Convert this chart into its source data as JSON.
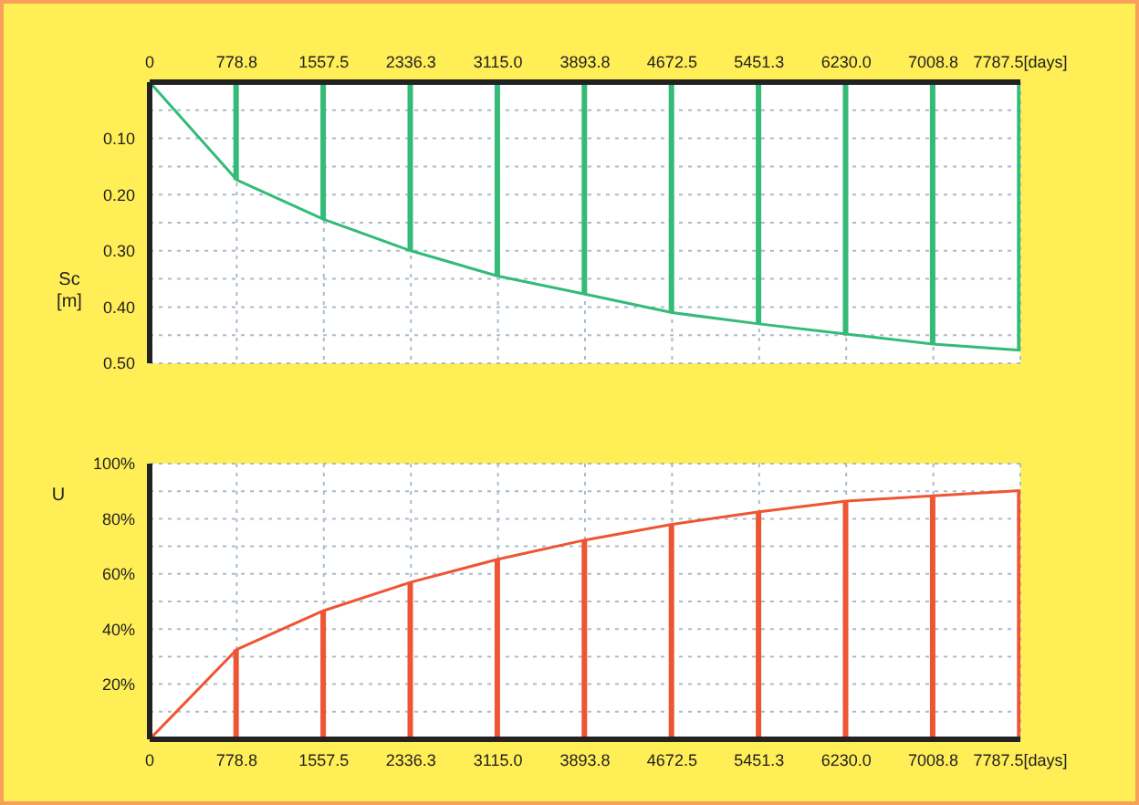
{
  "chart_data": [
    {
      "type": "line",
      "ylabel": "Sc [m]",
      "xlim": [
        0,
        7787.5
      ],
      "xticks": [
        0,
        {
          "value": 778.8,
          "label": "778.8"
        },
        1557.5,
        2336.3,
        {
          "value": 3115.0,
          "label": "3115.0"
        },
        3893.8,
        4672.5,
        5451.3,
        {
          "value": 6230.0,
          "label": "6230.0"
        },
        7008.8,
        {
          "value": 7787.5,
          "label": "7787.5[days]"
        }
      ],
      "ylim": [
        0.5,
        0
      ],
      "yticks": [
        {
          "value": 0.05,
          "label": null
        },
        {
          "value": 0.1,
          "label": "0.10"
        },
        {
          "value": 0.15,
          "label": null
        },
        {
          "value": 0.2,
          "label": "0.20"
        },
        {
          "value": 0.25,
          "label": null
        },
        {
          "value": 0.3,
          "label": "0.30"
        },
        {
          "value": 0.35,
          "label": null
        },
        {
          "value": 0.4,
          "label": "0.40"
        },
        {
          "value": 0.45,
          "label": null
        },
        {
          "value": 0.5,
          "label": "0.50"
        }
      ],
      "grid": true,
      "series": [
        {
          "color": "#33bb77",
          "x": [
            0,
            778.8,
            1557.5,
            2336.3,
            3115.0,
            3893.8,
            4672.5,
            5451.3,
            6230.0,
            7008.8,
            7787.5
          ],
          "values": [
            0,
            0.174,
            0.244,
            0.3,
            0.345,
            0.377,
            0.41,
            0.43,
            0.448,
            0.466,
            0.477
          ]
        },
        {
          "type": "bar",
          "color": "#33bb77",
          "x": [
            778.8,
            1557.5,
            2336.3,
            3115.0,
            3893.8,
            4672.5,
            5451.3,
            6230.0,
            7008.8,
            7787.5
          ],
          "values": [
            0.174,
            0.244,
            0.3,
            0.345,
            0.377,
            0.41,
            0.43,
            0.448,
            0.466,
            0.477
          ]
        }
      ]
    },
    {
      "type": "line",
      "ylabel": "U",
      "xlim": [
        0,
        7787.5
      ],
      "xticks": [
        0,
        {
          "value": 778.8,
          "label": "778.8"
        },
        1557.5,
        2336.3,
        {
          "value": 3115.0,
          "label": "3115.0"
        },
        3893.8,
        4672.5,
        5451.3,
        {
          "value": 6230.0,
          "label": "6230.0"
        },
        7008.8,
        {
          "value": 7787.5,
          "label": "7787.5[days]"
        }
      ],
      "ylim": [
        0,
        100
      ],
      "yticks": [
        {
          "value": 10,
          "label": null
        },
        {
          "value": 20,
          "label": "20%"
        },
        {
          "value": 30,
          "label": null
        },
        {
          "value": 40,
          "label": "40%"
        },
        {
          "value": 50,
          "label": null
        },
        {
          "value": 60,
          "label": "60%"
        },
        {
          "value": 70,
          "label": null
        },
        {
          "value": 80,
          "label": "80%"
        },
        {
          "value": 90,
          "label": null
        },
        {
          "value": 100,
          "label": "100%"
        }
      ],
      "grid": true,
      "series": [
        {
          "color": "#ee5533",
          "x": [
            0,
            778.8,
            1557.5,
            2336.3,
            3115.0,
            3893.8,
            4672.5,
            5451.3,
            6230.0,
            7008.8,
            7787.5
          ],
          "values": [
            0,
            32.6,
            46.7,
            57,
            65.3,
            72.3,
            78,
            82.5,
            86.4,
            88.3,
            90.2
          ]
        },
        {
          "type": "bar",
          "color": "#ee5533",
          "x": [
            778.8,
            1557.5,
            2336.3,
            3115.0,
            3893.8,
            4672.5,
            5451.3,
            6230.0,
            7008.8,
            7787.5
          ],
          "values": [
            32.6,
            46.7,
            57,
            65.3,
            72.3,
            78,
            82.5,
            86.4,
            88.3,
            90.2
          ]
        }
      ]
    }
  ]
}
